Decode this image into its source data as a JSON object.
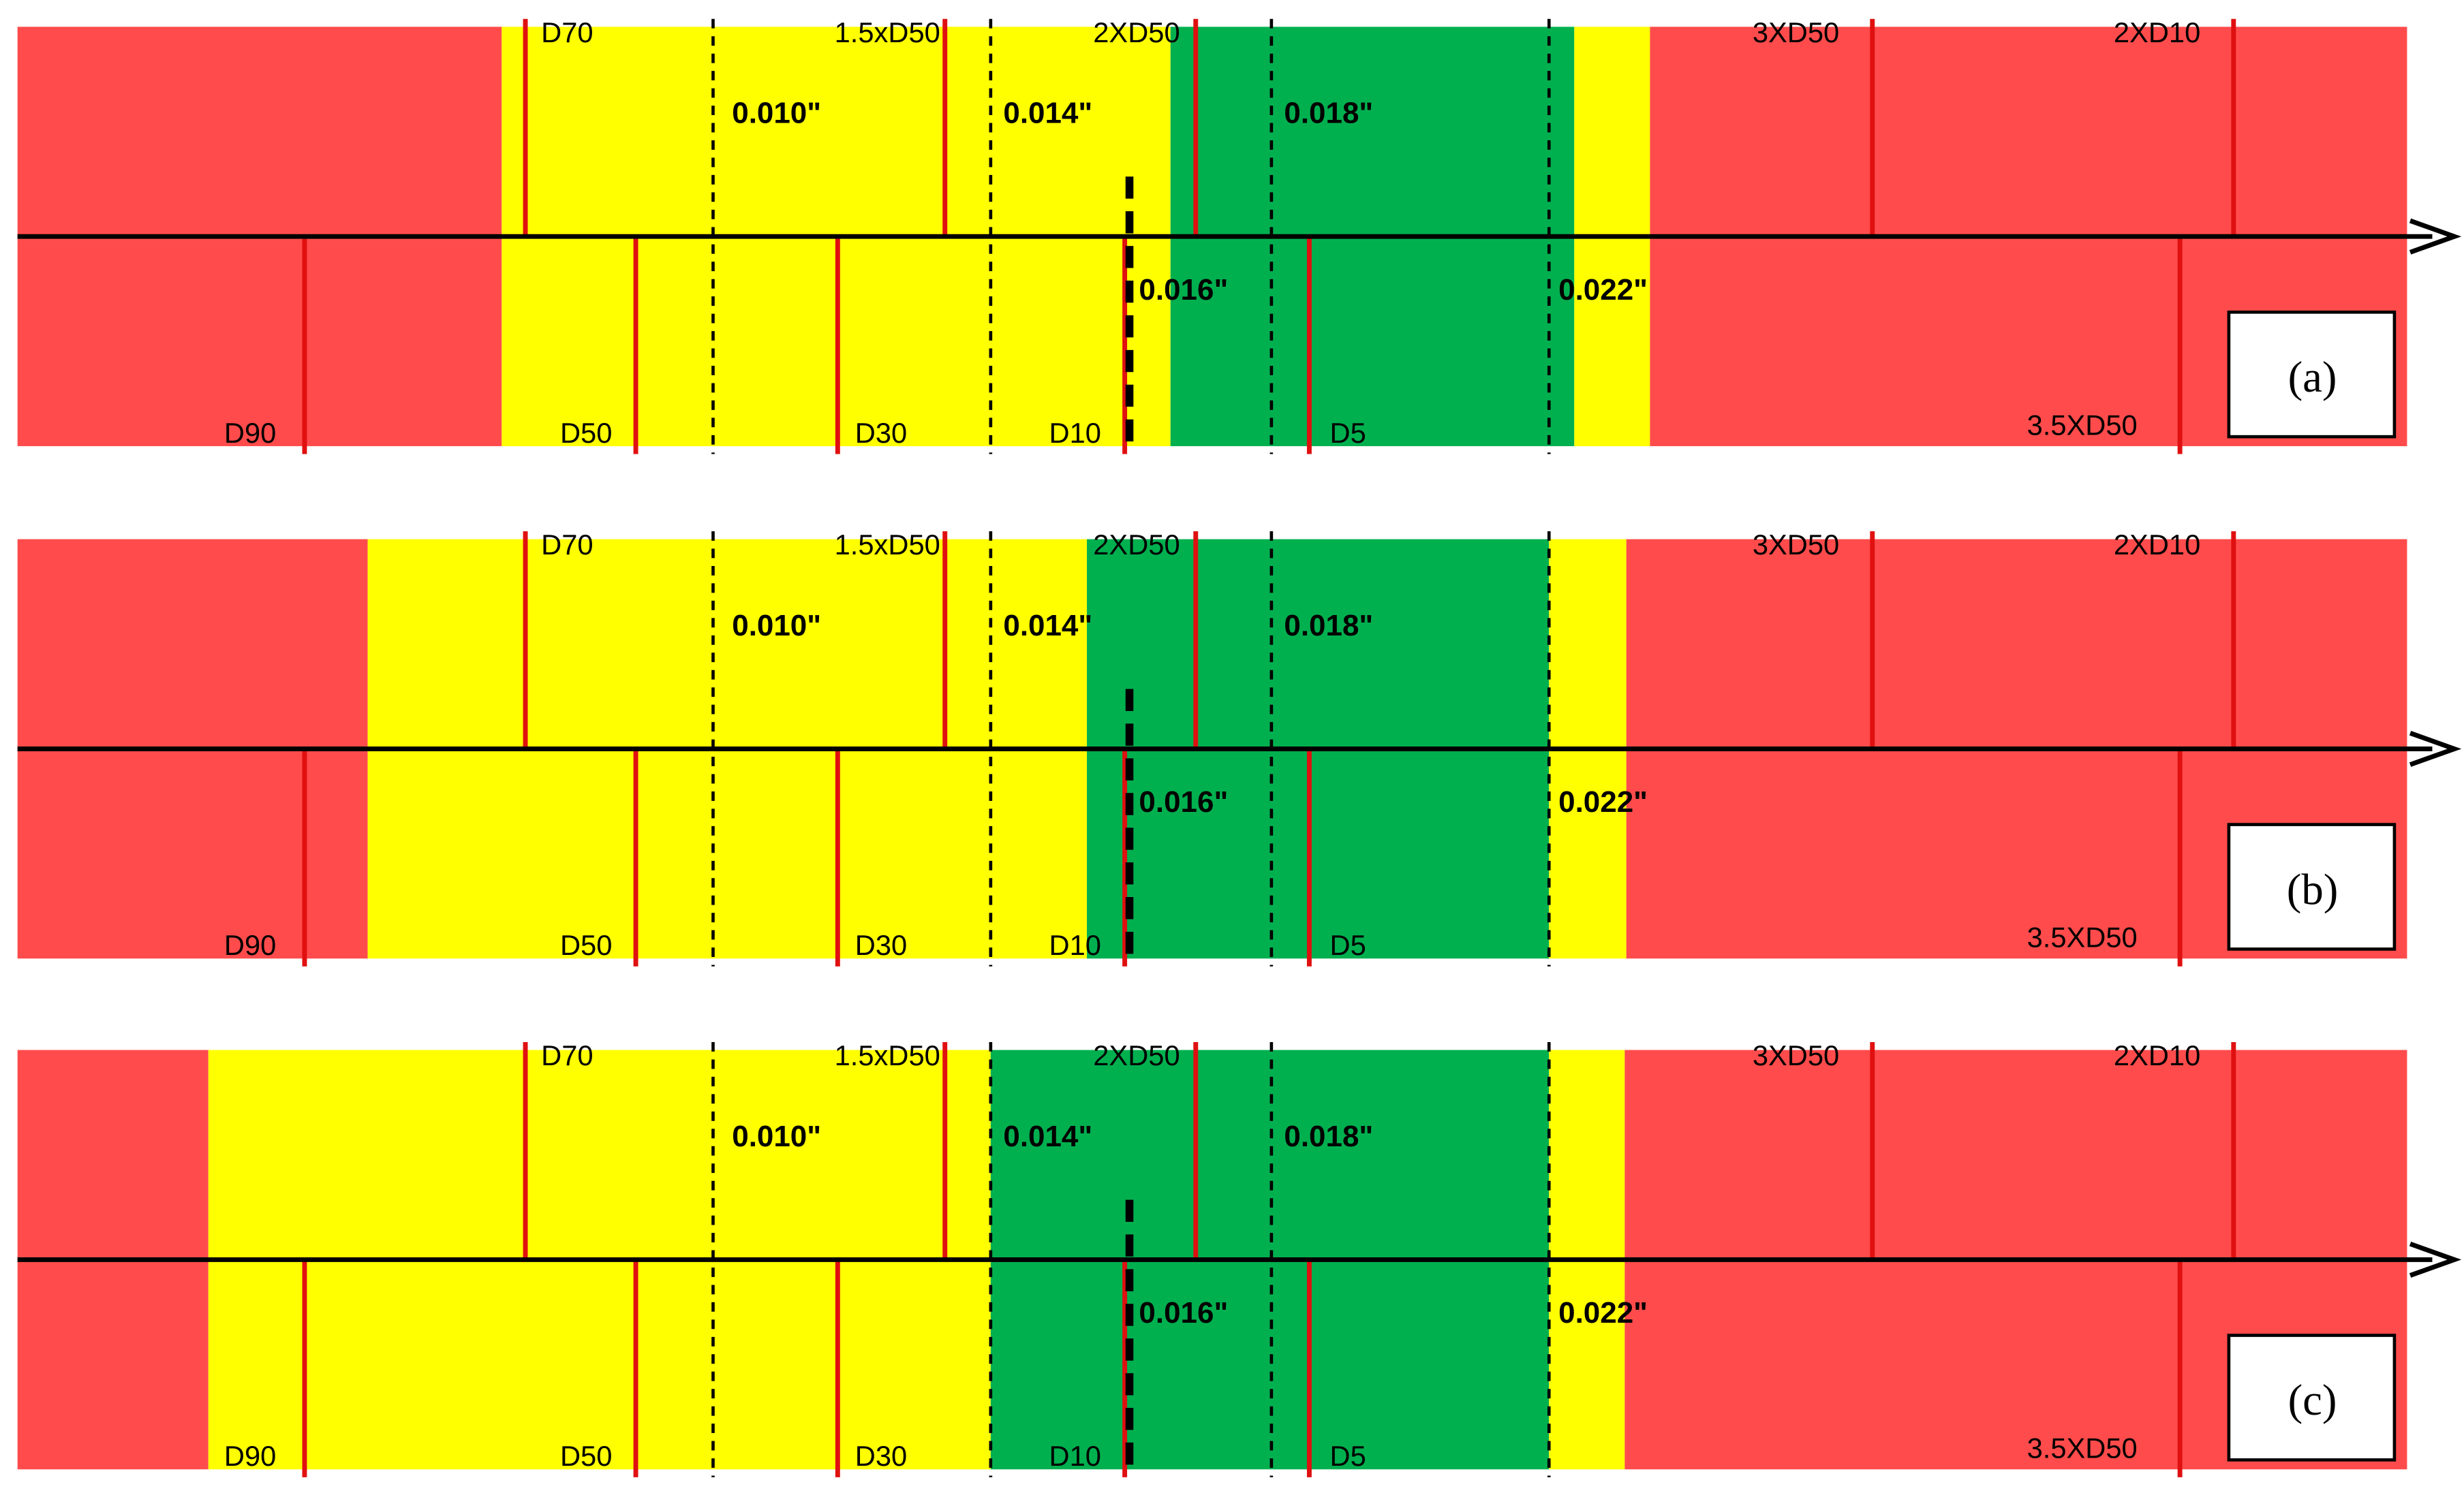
{
  "panels": [
    {
      "label": "(a)",
      "top_labels": [
        "D70",
        "1.5xD50",
        "2XD50",
        "3XD50",
        "2XD10"
      ],
      "bottom_labels": [
        "D90",
        "D50",
        "D30",
        "D10",
        "D5",
        "3.5XD50"
      ],
      "openings": [
        "0.010\"",
        "0.014\"",
        "0.018\"",
        "0.016\"",
        "0.022\""
      ]
    },
    {
      "label": "(b)",
      "top_labels": [
        "D70",
        "1.5xD50",
        "2XD50",
        "3XD50",
        "2XD10"
      ],
      "bottom_labels": [
        "D90",
        "D50",
        "D30",
        "D10",
        "D5",
        "3.5XD50"
      ],
      "openings": [
        "0.010\"",
        "0.014\"",
        "0.018\"",
        "0.016\"",
        "0.022\""
      ]
    },
    {
      "label": "(c)",
      "top_labels": [
        "D70",
        "1.5xD50",
        "2XD50",
        "3XD50",
        "2XD10"
      ],
      "bottom_labels": [
        "D90",
        "D50",
        "D30",
        "D10",
        "D5",
        "3.5XD50"
      ],
      "openings": [
        "0.010\"",
        "0.014\"",
        "0.018\"",
        "0.016\"",
        "0.022\""
      ]
    }
  ]
}
